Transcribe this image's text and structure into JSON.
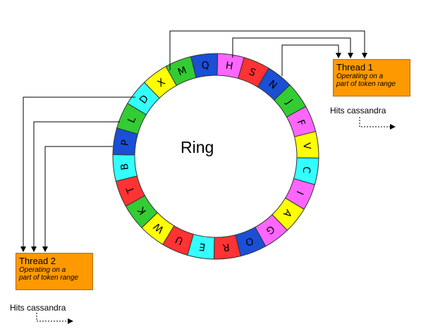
{
  "ring": {
    "label": "Ring",
    "segments": [
      {
        "letter": "H",
        "color": "#ff66ff"
      },
      {
        "letter": "S",
        "color": "#ff3333"
      },
      {
        "letter": "N",
        "color": "#1a4fd6"
      },
      {
        "letter": "J",
        "color": "#33cc33"
      },
      {
        "letter": "F",
        "color": "#ff66ff"
      },
      {
        "letter": "V",
        "color": "#ffff00"
      },
      {
        "letter": "C",
        "color": "#33ffff"
      },
      {
        "letter": "I",
        "color": "#ff66ff"
      },
      {
        "letter": "A",
        "color": "#ffff00"
      },
      {
        "letter": "G",
        "color": "#ff66ff"
      },
      {
        "letter": "O",
        "color": "#1a4fd6"
      },
      {
        "letter": "R",
        "color": "#ff3333"
      },
      {
        "letter": "E",
        "color": "#33ffff"
      },
      {
        "letter": "U",
        "color": "#ff3333"
      },
      {
        "letter": "W",
        "color": "#ffff00"
      },
      {
        "letter": "K",
        "color": "#33cc33"
      },
      {
        "letter": "T",
        "color": "#ff3333"
      },
      {
        "letter": "B",
        "color": "#33ffff"
      },
      {
        "letter": "P",
        "color": "#1a4fd6"
      },
      {
        "letter": "L",
        "color": "#33cc33"
      },
      {
        "letter": "D",
        "color": "#33ffff"
      },
      {
        "letter": "X",
        "color": "#ffff00"
      },
      {
        "letter": "M",
        "color": "#33cc33"
      },
      {
        "letter": "Q",
        "color": "#1a4fd6"
      }
    ]
  },
  "thread1": {
    "title": "Thread 1",
    "description_line1": "Operating on a",
    "description_line2": "part of token range",
    "hits": "Hits cassandra",
    "color": "#ff9900"
  },
  "thread2": {
    "title": "Thread 2",
    "description_line1": "Operating on a",
    "description_line2": "part of token range",
    "hits": "Hits cassandra",
    "color": "#ff9900"
  }
}
